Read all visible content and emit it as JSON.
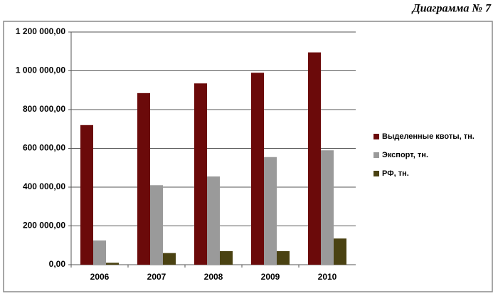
{
  "chart_data": {
    "type": "bar",
    "title": "Диаграмма № 7",
    "categories": [
      "2006",
      "2007",
      "2008",
      "2009",
      "2010"
    ],
    "series": [
      {
        "name": "Выделенные квоты, тн.",
        "color": "#6b0a0a",
        "values": [
          720000,
          885000,
          935000,
          990000,
          1095000
        ]
      },
      {
        "name": "Экспорт, тн.",
        "color": "#9a9a9a",
        "values": [
          125000,
          410000,
          455000,
          555000,
          590000
        ]
      },
      {
        "name": "РФ, тн.",
        "color": "#4a4212",
        "values": [
          10000,
          60000,
          70000,
          70000,
          135000
        ]
      }
    ],
    "ylim": [
      0,
      1200000
    ],
    "yticks": [
      {
        "value": 0,
        "label": "0,00"
      },
      {
        "value": 200000,
        "label": "200 000,00"
      },
      {
        "value": 400000,
        "label": "400 000,00"
      },
      {
        "value": 600000,
        "label": "600 000,00"
      },
      {
        "value": 800000,
        "label": "800 000,00"
      },
      {
        "value": 1000000,
        "label": "1 000 000,00"
      },
      {
        "value": 1200000,
        "label": "1 200 000,00"
      }
    ],
    "grid": true,
    "legend": "right"
  }
}
